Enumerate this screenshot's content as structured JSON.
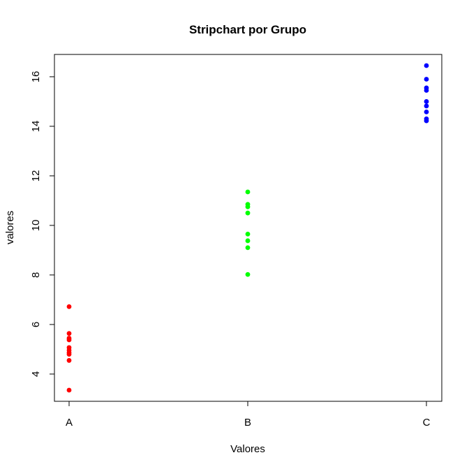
{
  "chart_data": {
    "type": "scatter",
    "title": "Stripchart por Grupo",
    "xlabel": "Valores",
    "ylabel": "valores",
    "categories": [
      "A",
      "B",
      "C"
    ],
    "yticks": [
      "4",
      "6",
      "8",
      "10",
      "12",
      "14",
      "16"
    ],
    "ylim": [
      2.9,
      16.9
    ],
    "grid": false,
    "series": [
      {
        "category": "A",
        "color": "#ff0000",
        "values": [
          6.72,
          5.64,
          5.45,
          5.38,
          5.07,
          4.96,
          4.87,
          4.8,
          4.55,
          3.35
        ]
      },
      {
        "category": "B",
        "color": "#00ff00",
        "values": [
          11.35,
          10.85,
          10.75,
          10.5,
          9.65,
          9.38,
          9.1,
          8.02
        ]
      },
      {
        "category": "C",
        "color": "#0000ff",
        "values": [
          16.45,
          15.9,
          15.55,
          15.45,
          15.0,
          14.82,
          14.58,
          14.3,
          14.22
        ]
      }
    ]
  }
}
